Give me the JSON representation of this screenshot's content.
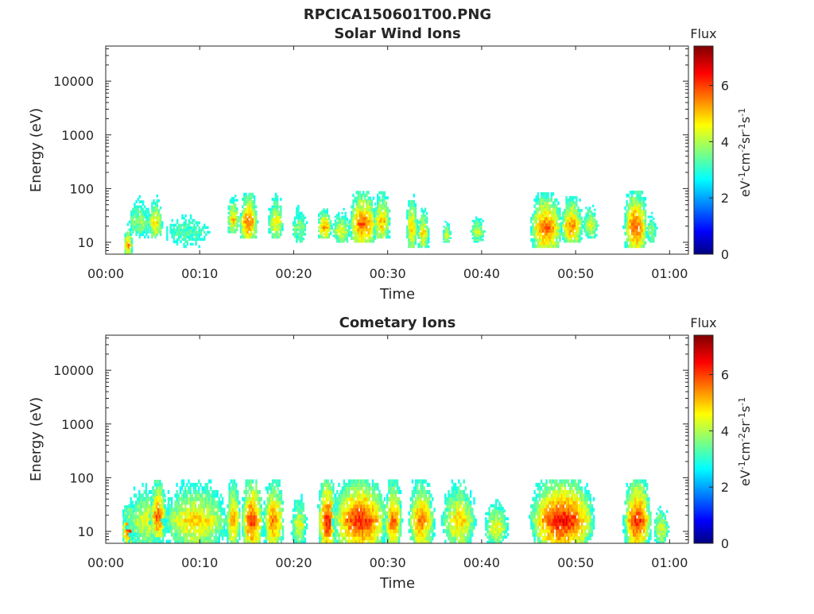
{
  "figure_title": "RPCICA150601T00.PNG",
  "chart_data": [
    {
      "type": "heatmap",
      "title": "Solar Wind Ions",
      "xlabel": "Time",
      "ylabel": "Energy (eV)",
      "x_ticks": [
        "00:00",
        "00:10",
        "00:20",
        "00:30",
        "00:40",
        "00:50",
        "01:00"
      ],
      "x_range_minutes": [
        0,
        62
      ],
      "y_ticks": [
        10,
        100,
        1000,
        10000
      ],
      "y_scale": "log",
      "y_range": [
        6,
        45000
      ],
      "colorbar": {
        "title": "Flux",
        "label": "eV-1cm-2sr-1s-1",
        "label_base": "eV",
        "ticks": [
          0,
          2,
          4,
          6
        ],
        "range": [
          0,
          7.4
        ],
        "colormap": "jet"
      },
      "blobs": [
        {
          "t": 2.3,
          "w": 0.5,
          "e0": 6,
          "e1": 18,
          "v": 5.5
        },
        {
          "t": 3.5,
          "w": 1.6,
          "e0": 12,
          "e1": 75,
          "v": 4.0
        },
        {
          "t": 5.2,
          "w": 0.9,
          "e0": 12,
          "e1": 70,
          "v": 4.8
        },
        {
          "t": 8.5,
          "w": 3.5,
          "e0": 8,
          "e1": 45,
          "v": 3.5
        },
        {
          "t": 13.5,
          "w": 0.7,
          "e0": 15,
          "e1": 70,
          "v": 5.0
        },
        {
          "t": 15.1,
          "w": 1.0,
          "e0": 12,
          "e1": 75,
          "v": 5.8
        },
        {
          "t": 18.0,
          "w": 0.9,
          "e0": 12,
          "e1": 75,
          "v": 4.8
        },
        {
          "t": 20.5,
          "w": 1.0,
          "e0": 10,
          "e1": 55,
          "v": 4.0
        },
        {
          "t": 23.2,
          "w": 0.8,
          "e0": 12,
          "e1": 40,
          "v": 5.5
        },
        {
          "t": 25.0,
          "w": 1.2,
          "e0": 10,
          "e1": 40,
          "v": 4.5
        },
        {
          "t": 27.3,
          "w": 1.6,
          "e0": 10,
          "e1": 80,
          "v": 5.8
        },
        {
          "t": 29.3,
          "w": 1.0,
          "e0": 12,
          "e1": 80,
          "v": 5.2
        },
        {
          "t": 32.5,
          "w": 0.7,
          "e0": 8,
          "e1": 80,
          "v": 5.0
        },
        {
          "t": 33.7,
          "w": 0.7,
          "e0": 8,
          "e1": 40,
          "v": 5.0
        },
        {
          "t": 36.2,
          "w": 0.5,
          "e0": 10,
          "e1": 25,
          "v": 4.5
        },
        {
          "t": 39.5,
          "w": 0.9,
          "e0": 10,
          "e1": 35,
          "v": 4.3
        },
        {
          "t": 46.8,
          "w": 1.8,
          "e0": 8,
          "e1": 75,
          "v": 5.8
        },
        {
          "t": 49.5,
          "w": 1.3,
          "e0": 10,
          "e1": 65,
          "v": 5.5
        },
        {
          "t": 51.5,
          "w": 1.0,
          "e0": 12,
          "e1": 50,
          "v": 4.5
        },
        {
          "t": 56.3,
          "w": 1.3,
          "e0": 8,
          "e1": 80,
          "v": 6.0
        },
        {
          "t": 58.0,
          "w": 0.7,
          "e0": 10,
          "e1": 40,
          "v": 4.0
        }
      ]
    },
    {
      "type": "heatmap",
      "title": "Cometary Ions",
      "xlabel": "Time",
      "ylabel": "Energy (eV)",
      "x_ticks": [
        "00:00",
        "00:10",
        "00:20",
        "00:30",
        "00:40",
        "00:50",
        "01:00"
      ],
      "x_range_minutes": [
        0,
        62
      ],
      "y_ticks": [
        10,
        100,
        1000,
        10000
      ],
      "y_scale": "log",
      "y_range": [
        6,
        45000
      ],
      "colorbar": {
        "title": "Flux",
        "label": "eV-1cm-2sr-1s-1",
        "label_base": "eV",
        "ticks": [
          0,
          2,
          4,
          6
        ],
        "range": [
          0,
          7.4
        ],
        "colormap": "jet"
      },
      "blobs": [
        {
          "t": 2.4,
          "w": 0.8,
          "e0": 6,
          "e1": 28,
          "v": 6.2
        },
        {
          "t": 4.3,
          "w": 2.8,
          "e0": 6,
          "e1": 80,
          "v": 4.5
        },
        {
          "t": 5.5,
          "w": 0.9,
          "e0": 8,
          "e1": 80,
          "v": 5.9
        },
        {
          "t": 9.5,
          "w": 4.0,
          "e0": 6,
          "e1": 80,
          "v": 5.0
        },
        {
          "t": 13.5,
          "w": 0.8,
          "e0": 6,
          "e1": 80,
          "v": 5.5
        },
        {
          "t": 15.5,
          "w": 1.2,
          "e0": 6,
          "e1": 80,
          "v": 6.2
        },
        {
          "t": 17.8,
          "w": 1.2,
          "e0": 6,
          "e1": 80,
          "v": 5.6
        },
        {
          "t": 20.5,
          "w": 1.0,
          "e0": 6,
          "e1": 50,
          "v": 4.5
        },
        {
          "t": 23.5,
          "w": 1.0,
          "e0": 6,
          "e1": 80,
          "v": 6.4
        },
        {
          "t": 27.0,
          "w": 3.0,
          "e0": 6,
          "e1": 80,
          "v": 6.3
        },
        {
          "t": 30.5,
          "w": 1.0,
          "e0": 6,
          "e1": 80,
          "v": 5.8
        },
        {
          "t": 33.5,
          "w": 1.5,
          "e0": 6,
          "e1": 80,
          "v": 5.6
        },
        {
          "t": 37.5,
          "w": 2.0,
          "e0": 6,
          "e1": 80,
          "v": 5.0
        },
        {
          "t": 41.5,
          "w": 1.5,
          "e0": 6,
          "e1": 40,
          "v": 4.6
        },
        {
          "t": 48.5,
          "w": 3.5,
          "e0": 6,
          "e1": 80,
          "v": 6.5
        },
        {
          "t": 56.5,
          "w": 1.5,
          "e0": 6,
          "e1": 80,
          "v": 6.3
        },
        {
          "t": 59.0,
          "w": 1.0,
          "e0": 6,
          "e1": 30,
          "v": 4.5
        }
      ]
    }
  ]
}
